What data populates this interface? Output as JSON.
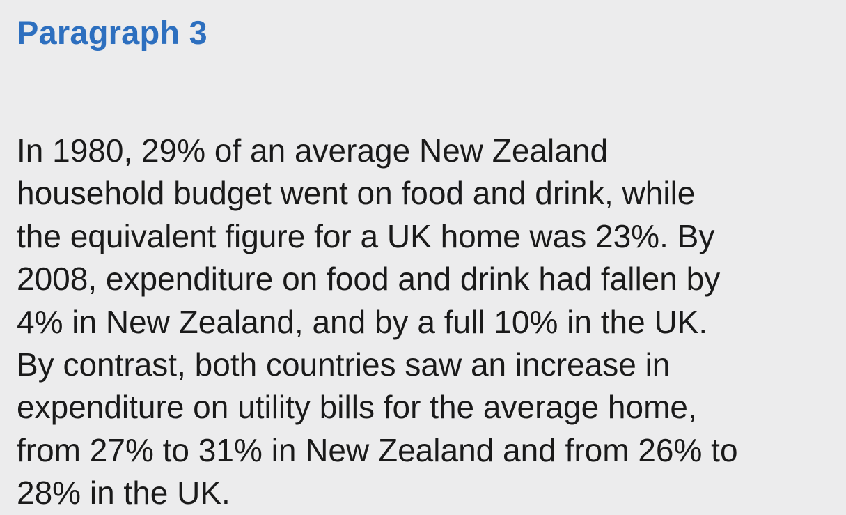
{
  "section": {
    "heading": "Paragraph 3",
    "lines": [
      "In 1980, 29% of an average New Zealand",
      "household budget went on food and drink, while",
      "the equivalent figure for a UK home was 23%. By",
      "2008, expenditure on food and drink had fallen by",
      "4% in New Zealand, and by a full 10% in the UK.",
      "By contrast, both countries saw an increase in",
      "expenditure on utility bills for the average home,",
      "from 27% to 31% in New Zealand and from 26% to",
      "28% in the UK."
    ]
  },
  "colors": {
    "background": "#ececed",
    "heading": "#2d6fbf",
    "text": "#1a1a1a"
  }
}
